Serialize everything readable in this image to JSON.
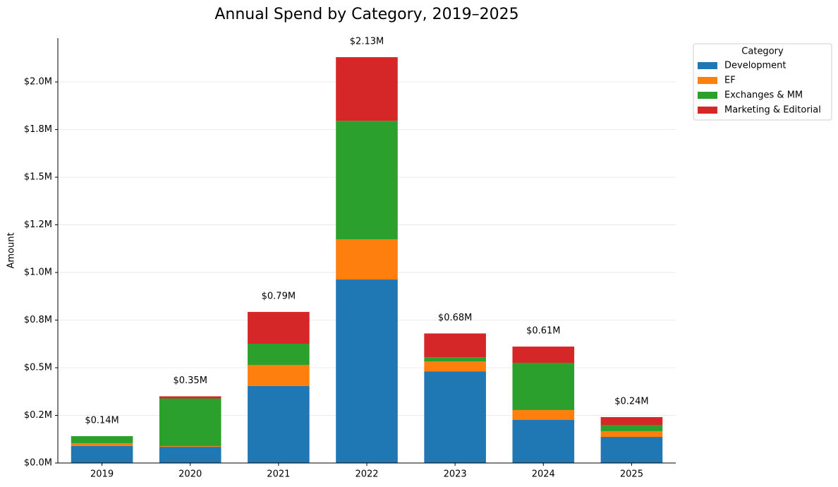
{
  "chart_data": {
    "type": "stacked_bar",
    "title": "Annual Spend by Category, 2019–2025",
    "y_label": "Amount",
    "categories": [
      "2019",
      "2020",
      "2021",
      "2022",
      "2023",
      "2024",
      "2025"
    ],
    "series": [
      {
        "name": "Development",
        "color": "#1f77b4",
        "values": [
          89000,
          85000,
          404000,
          963000,
          481000,
          226000,
          137000
        ]
      },
      {
        "name": "EF",
        "color": "#ff7f0e",
        "values": [
          15000,
          4000,
          111000,
          211000,
          52000,
          52000,
          30000
        ]
      },
      {
        "name": "Exchanges & MM",
        "color": "#2ca02c",
        "values": [
          37000,
          250000,
          111000,
          622000,
          22000,
          248000,
          33000
        ]
      },
      {
        "name": "Marketing & Editorial",
        "color": "#d62728",
        "values": [
          0,
          11000,
          167000,
          334000,
          125000,
          85000,
          41000
        ]
      }
    ],
    "totals": [
      141000,
      350000,
      793000,
      2130000,
      680000,
      611000,
      241000
    ],
    "total_labels": [
      "$0.14M",
      "$0.35M",
      "$0.79M",
      "$2.13M",
      "$0.68M",
      "$0.61M",
      "$0.24M"
    ],
    "legend_title": "Category",
    "legend": "outside-upper-right",
    "grid": true,
    "ylim": [
      0,
      2230000
    ],
    "yticks": [
      {
        "value": 0,
        "label": "$0.0M"
      },
      {
        "value": 250000,
        "label": "$0.2M"
      },
      {
        "value": 500000,
        "label": "$0.5M"
      },
      {
        "value": 750000,
        "label": "$0.8M"
      },
      {
        "value": 1000000,
        "label": "$1.0M"
      },
      {
        "value": 1250000,
        "label": "$1.2M"
      },
      {
        "value": 1500000,
        "label": "$1.5M"
      },
      {
        "value": 1750000,
        "label": "$1.8M"
      },
      {
        "value": 2000000,
        "label": "$2.0M"
      }
    ]
  }
}
